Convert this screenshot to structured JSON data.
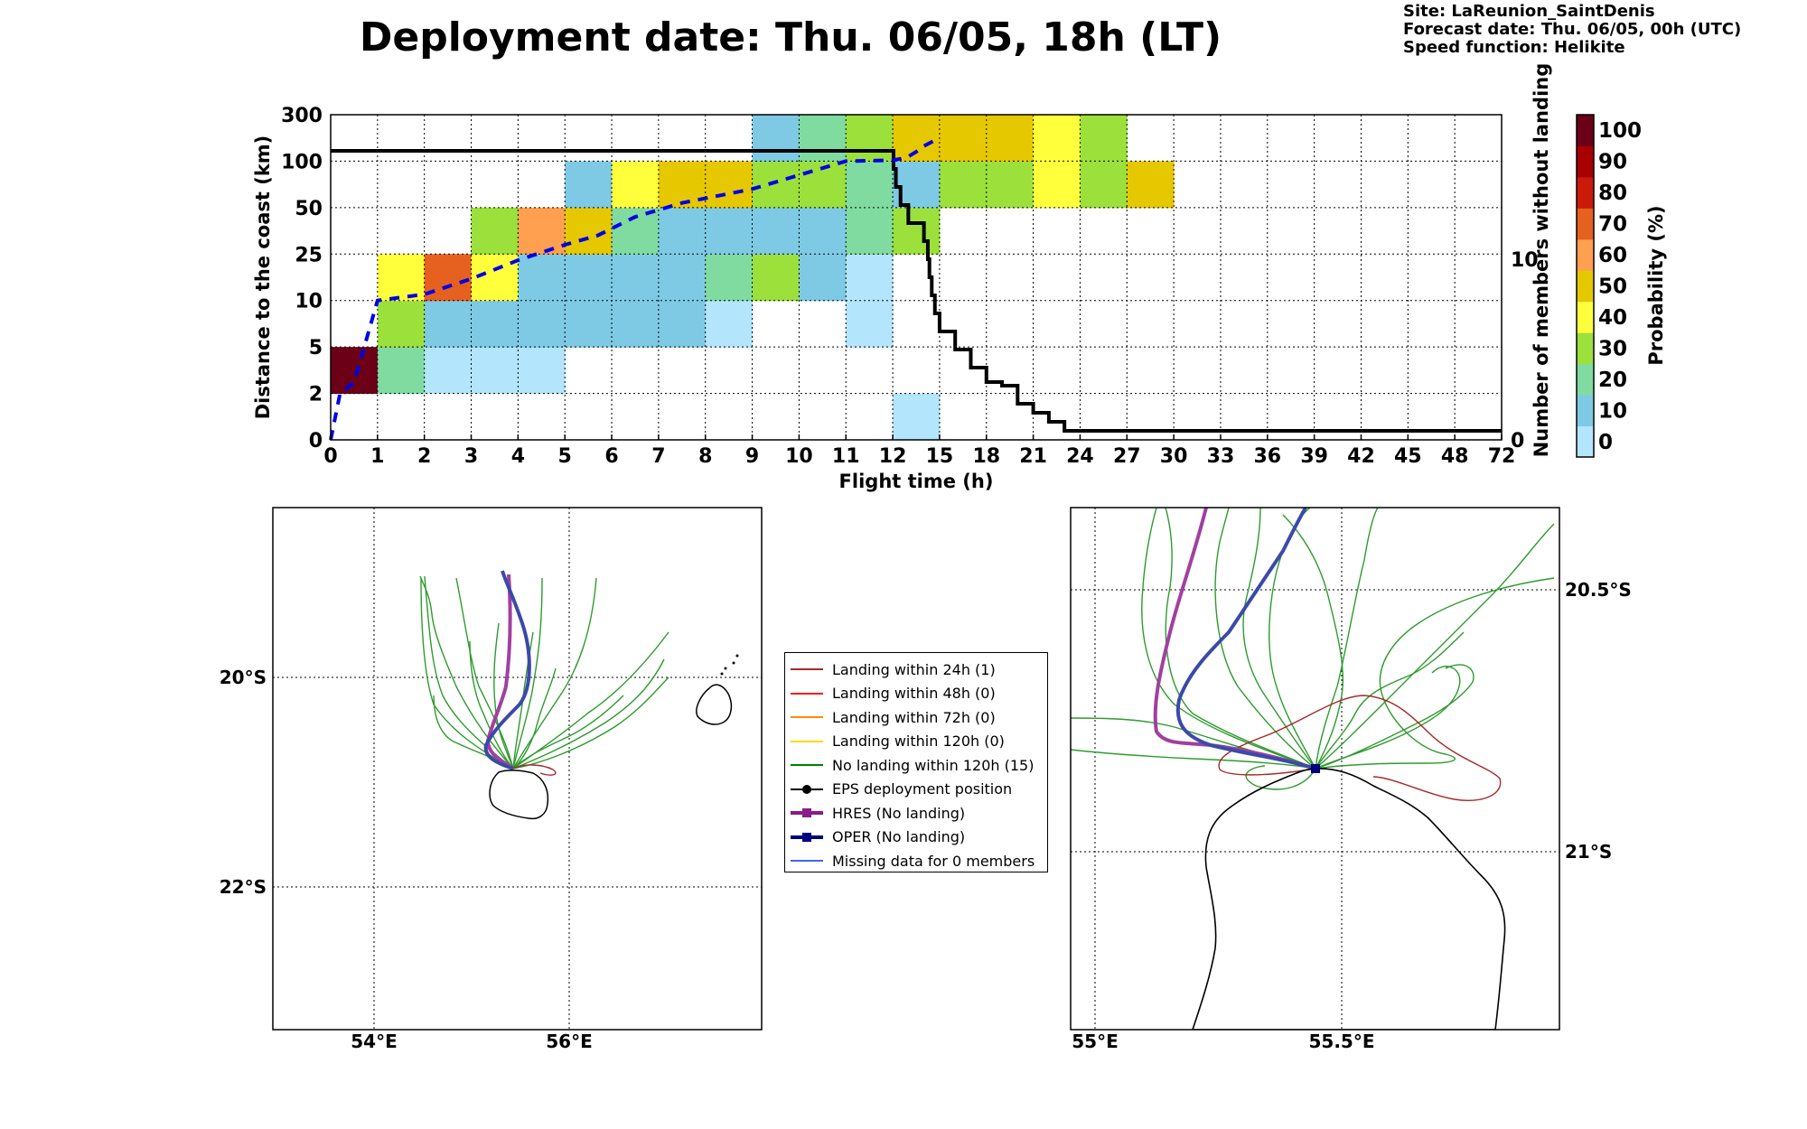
{
  "title": "Deployment date: Thu. 06/05, 18h (LT)",
  "site_info": {
    "site": "Site: LaReunion_SaintDenis",
    "forecast": "Forecast date: Thu. 06/05, 00h (UTC)",
    "speed": "Speed function: Helikite"
  },
  "chart_data": [
    {
      "type": "heatmap",
      "title": "Deployment date: Thu. 06/05, 18h (LT)",
      "xlabel": "Flight time (h)",
      "ylabel": "Distance to the coast (km)",
      "y2label": "Number of members without landing",
      "x_ticks": [
        "0",
        "1",
        "2",
        "3",
        "4",
        "5",
        "6",
        "7",
        "8",
        "9",
        "10",
        "11",
        "12",
        "15",
        "18",
        "21",
        "24",
        "27",
        "30",
        "33",
        "36",
        "39",
        "42",
        "45",
        "48",
        "72"
      ],
      "y_ticks": [
        "0",
        "2",
        "5",
        "10",
        "25",
        "50",
        "100",
        "300"
      ],
      "y2_ticks": [
        "0",
        "10"
      ],
      "y2_range": [
        0,
        18
      ],
      "colorbar": {
        "label": "Probability (%)",
        "ticks": [
          "0",
          "10",
          "20",
          "30",
          "40",
          "50",
          "60",
          "70",
          "80",
          "90",
          "100"
        ],
        "colors": [
          "#b3e5fc",
          "#7ecae5",
          "#80dba0",
          "#9ce03c",
          "#ffff3c",
          "#e6c800",
          "#ff9f50",
          "#e66020",
          "#cc1a0a",
          "#a80000",
          "#6b0016"
        ]
      },
      "cells": [
        {
          "x_bin": 0,
          "y_bin": 1,
          "prob_bin": 10
        },
        {
          "x_bin": 1,
          "y_bin": 1,
          "prob_bin": 2
        },
        {
          "x_bin": 1,
          "y_bin": 2,
          "prob_bin": 3
        },
        {
          "x_bin": 1,
          "y_bin": 3,
          "prob_bin": 4
        },
        {
          "x_bin": 2,
          "y_bin": 1,
          "prob_bin": 0
        },
        {
          "x_bin": 2,
          "y_bin": 2,
          "prob_bin": 1
        },
        {
          "x_bin": 2,
          "y_bin": 3,
          "prob_bin": 7
        },
        {
          "x_bin": 3,
          "y_bin": 1,
          "prob_bin": 0
        },
        {
          "x_bin": 3,
          "y_bin": 2,
          "prob_bin": 1
        },
        {
          "x_bin": 3,
          "y_bin": 3,
          "prob_bin": 4
        },
        {
          "x_bin": 3,
          "y_bin": 4,
          "prob_bin": 3
        },
        {
          "x_bin": 4,
          "y_bin": 1,
          "prob_bin": 0
        },
        {
          "x_bin": 4,
          "y_bin": 2,
          "prob_bin": 1
        },
        {
          "x_bin": 4,
          "y_bin": 3,
          "prob_bin": 1
        },
        {
          "x_bin": 4,
          "y_bin": 4,
          "prob_bin": 6
        },
        {
          "x_bin": 5,
          "y_bin": 2,
          "prob_bin": 1
        },
        {
          "x_bin": 5,
          "y_bin": 3,
          "prob_bin": 1
        },
        {
          "x_bin": 5,
          "y_bin": 4,
          "prob_bin": 5
        },
        {
          "x_bin": 5,
          "y_bin": 5,
          "prob_bin": 1
        },
        {
          "x_bin": 6,
          "y_bin": 2,
          "prob_bin": 1
        },
        {
          "x_bin": 6,
          "y_bin": 3,
          "prob_bin": 1
        },
        {
          "x_bin": 6,
          "y_bin": 4,
          "prob_bin": 2
        },
        {
          "x_bin": 6,
          "y_bin": 5,
          "prob_bin": 4
        },
        {
          "x_bin": 7,
          "y_bin": 2,
          "prob_bin": 1
        },
        {
          "x_bin": 7,
          "y_bin": 3,
          "prob_bin": 1
        },
        {
          "x_bin": 7,
          "y_bin": 4,
          "prob_bin": 1
        },
        {
          "x_bin": 7,
          "y_bin": 5,
          "prob_bin": 5
        },
        {
          "x_bin": 8,
          "y_bin": 2,
          "prob_bin": 0
        },
        {
          "x_bin": 8,
          "y_bin": 3,
          "prob_bin": 2
        },
        {
          "x_bin": 8,
          "y_bin": 4,
          "prob_bin": 1
        },
        {
          "x_bin": 8,
          "y_bin": 5,
          "prob_bin": 5
        },
        {
          "x_bin": 9,
          "y_bin": 3,
          "prob_bin": 3
        },
        {
          "x_bin": 9,
          "y_bin": 4,
          "prob_bin": 1
        },
        {
          "x_bin": 9,
          "y_bin": 5,
          "prob_bin": 3
        },
        {
          "x_bin": 9,
          "y_bin": 6,
          "prob_bin": 1
        },
        {
          "x_bin": 10,
          "y_bin": 3,
          "prob_bin": 1
        },
        {
          "x_bin": 10,
          "y_bin": 4,
          "prob_bin": 1
        },
        {
          "x_bin": 10,
          "y_bin": 5,
          "prob_bin": 3
        },
        {
          "x_bin": 10,
          "y_bin": 6,
          "prob_bin": 2
        },
        {
          "x_bin": 11,
          "y_bin": 2,
          "prob_bin": 0
        },
        {
          "x_bin": 11,
          "y_bin": 3,
          "prob_bin": 0
        },
        {
          "x_bin": 11,
          "y_bin": 4,
          "prob_bin": 2
        },
        {
          "x_bin": 11,
          "y_bin": 5,
          "prob_bin": 2
        },
        {
          "x_bin": 11,
          "y_bin": 6,
          "prob_bin": 3
        },
        {
          "x_bin": 12,
          "y_bin": 0,
          "prob_bin": 0
        },
        {
          "x_bin": 12,
          "y_bin": 4,
          "prob_bin": 3
        },
        {
          "x_bin": 12,
          "y_bin": 5,
          "prob_bin": 1
        },
        {
          "x_bin": 12,
          "y_bin": 6,
          "prob_bin": 5
        },
        {
          "x_bin": 13,
          "y_bin": 5,
          "prob_bin": 3
        },
        {
          "x_bin": 13,
          "y_bin": 6,
          "prob_bin": 5
        },
        {
          "x_bin": 14,
          "y_bin": 5,
          "prob_bin": 3
        },
        {
          "x_bin": 14,
          "y_bin": 6,
          "prob_bin": 5
        },
        {
          "x_bin": 15,
          "y_bin": 5,
          "prob_bin": 4
        },
        {
          "x_bin": 15,
          "y_bin": 6,
          "prob_bin": 4
        },
        {
          "x_bin": 16,
          "y_bin": 5,
          "prob_bin": 3
        },
        {
          "x_bin": 16,
          "y_bin": 6,
          "prob_bin": 3
        },
        {
          "x_bin": 17,
          "y_bin": 5,
          "prob_bin": 5
        }
      ],
      "median_distance": {
        "x": [
          0,
          0.2,
          0.5,
          1,
          1.5,
          2,
          3,
          4,
          5,
          5.7,
          6.5,
          7.5,
          9,
          10,
          11,
          11.5,
          12,
          12.5,
          13,
          13.5,
          14,
          14.7
        ],
        "y": [
          0,
          2,
          2.7,
          10,
          11,
          12,
          17,
          23,
          30,
          35,
          45,
          55,
          70,
          85,
          100,
          102,
          104,
          110,
          120,
          140,
          165,
          190
        ]
      },
      "members_without_landing": {
        "x": [
          0,
          12,
          12.05,
          12.2,
          12.5,
          13,
          13.5,
          14,
          14.25,
          14.35,
          14.5,
          14.7,
          15,
          16,
          17,
          18,
          19,
          20,
          21,
          22,
          23,
          24,
          72
        ],
        "y": [
          16,
          16,
          15,
          14,
          13,
          12,
          12,
          11,
          10,
          9,
          8,
          7,
          6,
          5,
          4,
          3.2,
          3,
          2,
          1.5,
          1,
          0.5,
          0.5,
          0.5
        ]
      }
    },
    {
      "type": "map",
      "x_ticks": [
        "54°E",
        "56°E"
      ],
      "y_ticks": [
        "20°S",
        "22°S"
      ]
    },
    {
      "type": "map",
      "x_ticks": [
        "55°E",
        "55.5°E"
      ],
      "y_ticks": [
        "20.5°S",
        "21°S"
      ]
    }
  ],
  "legend": [
    {
      "label": "Landing within 24h (1)",
      "color": "#a52a2a",
      "marker": "none"
    },
    {
      "label": "Landing within 48h (0)",
      "color": "#ff1a1a",
      "marker": "none"
    },
    {
      "label": "Landing within 72h (0)",
      "color": "#ff8c00",
      "marker": "none"
    },
    {
      "label": "Landing within 120h (0)",
      "color": "#ffd700",
      "marker": "none"
    },
    {
      "label": "No landing within 120h (15)",
      "color": "#008000",
      "marker": "none"
    },
    {
      "label": "EPS deployment position",
      "color": "#000000",
      "marker": "circle"
    },
    {
      "label": "HRES (No landing)",
      "color": "#8b1a8b",
      "marker": "square"
    },
    {
      "label": "OPER (No landing)",
      "color": "#000080",
      "marker": "square"
    },
    {
      "label": "Missing data for 0 members",
      "color": "#4169e1",
      "marker": "none"
    }
  ]
}
